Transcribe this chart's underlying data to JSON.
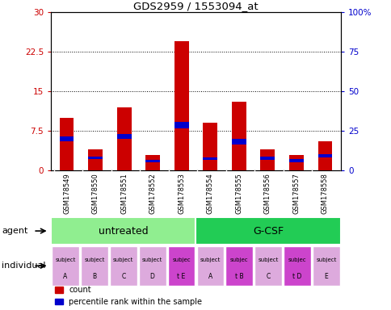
{
  "title": "GDS2959 / 1553094_at",
  "samples": [
    "GSM178549",
    "GSM178550",
    "GSM178551",
    "GSM178552",
    "GSM178553",
    "GSM178554",
    "GSM178555",
    "GSM178556",
    "GSM178557",
    "GSM178558"
  ],
  "red_values": [
    10.0,
    4.0,
    12.0,
    3.0,
    24.5,
    9.0,
    13.0,
    4.0,
    3.0,
    5.5
  ],
  "blue_values": [
    1.0,
    0.5,
    1.0,
    0.5,
    1.2,
    0.5,
    1.0,
    0.6,
    0.6,
    0.6
  ],
  "blue_bottoms": [
    5.5,
    2.2,
    6.0,
    1.5,
    8.0,
    2.0,
    5.0,
    2.0,
    1.5,
    2.5
  ],
  "ylim_left": [
    0,
    30
  ],
  "ylim_right": [
    0,
    100
  ],
  "yticks_left": [
    0,
    7.5,
    15,
    22.5,
    30
  ],
  "yticks_right": [
    0,
    25,
    50,
    75,
    100
  ],
  "ytick_labels_left": [
    "0",
    "7.5",
    "15",
    "22.5",
    "30"
  ],
  "ytick_labels_right": [
    "0",
    "25",
    "50",
    "75",
    "100%"
  ],
  "agent_groups": [
    {
      "label": "untreated",
      "start": 0,
      "end": 5,
      "color": "#90ee90"
    },
    {
      "label": "G-CSF",
      "start": 5,
      "end": 10,
      "color": "#22cc55"
    }
  ],
  "individual_labels_line1": [
    "subject",
    "subject",
    "subject",
    "subject",
    "subjec",
    "subject",
    "subjec",
    "subject",
    "subjec",
    "subject"
  ],
  "individual_labels_line2": [
    "A",
    "B",
    "C",
    "D",
    "t E",
    "A",
    "t B",
    "C",
    "t D",
    "E"
  ],
  "individual_highlight": [
    4,
    6,
    8
  ],
  "bar_width": 0.5,
  "red_color": "#cc0000",
  "blue_color": "#0000cc",
  "tick_color_left": "#cc0000",
  "tick_color_right": "#0000cc",
  "agent_label": "agent",
  "individual_label": "individual",
  "legend_count": "count",
  "legend_percentile": "percentile rank within the sample",
  "background_color": "#ffffff",
  "sample_bg": "#cccccc",
  "agent_arrow_color": "#444444",
  "indiv_color_normal": "#ddaadd",
  "indiv_color_highlight": "#cc44cc"
}
